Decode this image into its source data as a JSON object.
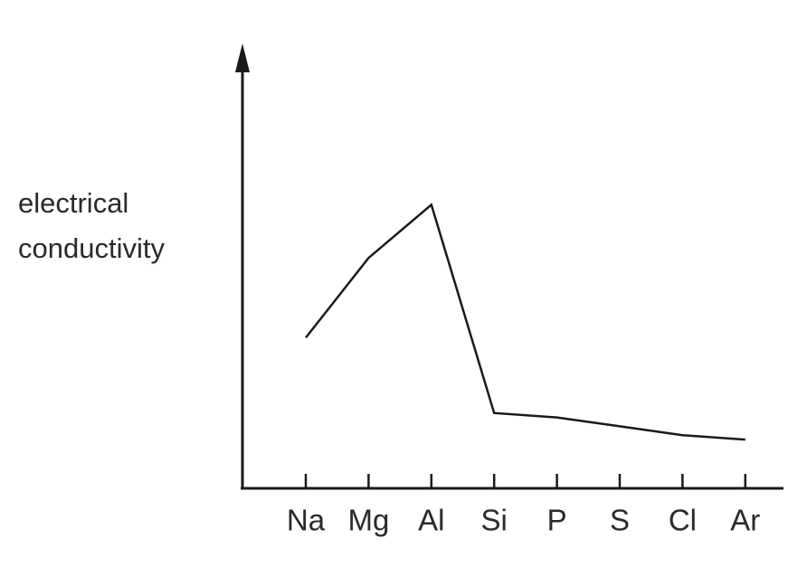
{
  "chart_data": {
    "type": "line",
    "y_label": "electrical conductivity",
    "categories": [
      "Na",
      "Mg",
      "Al",
      "Si",
      "P",
      "S",
      "Cl",
      "Ar"
    ],
    "values": [
      34,
      52,
      64,
      17,
      16,
      14,
      12,
      11
    ],
    "color": "#1a1a1a",
    "ylim": [
      0,
      100
    ]
  }
}
